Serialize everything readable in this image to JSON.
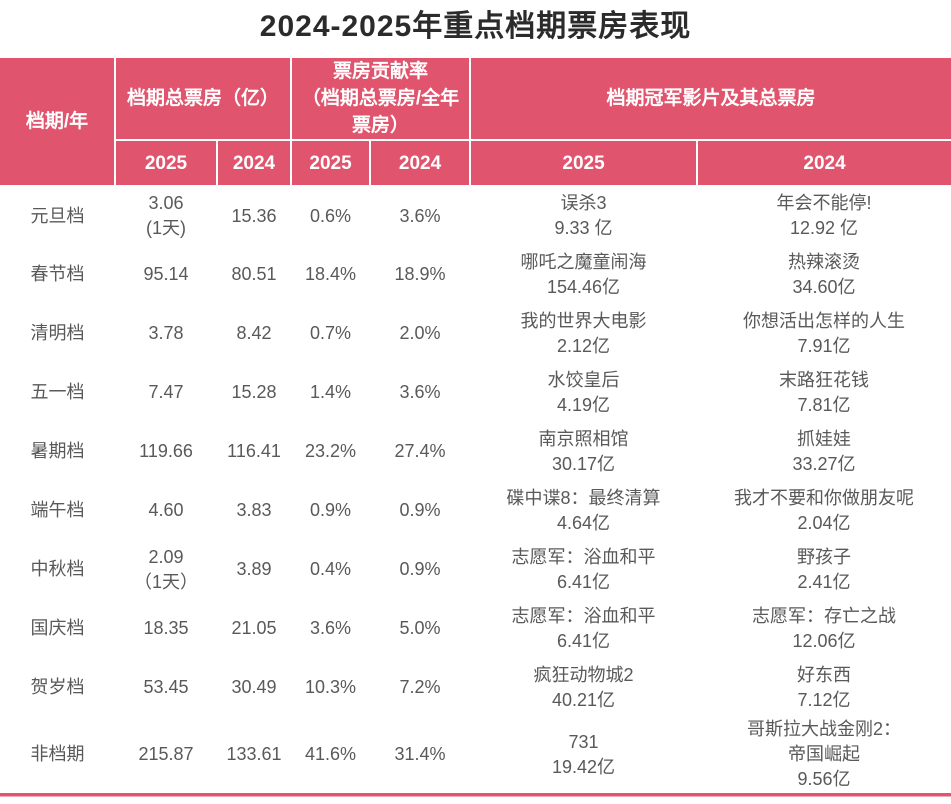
{
  "title": "2024-2025年重点档期票房表现",
  "colors": {
    "header_pink": "#e0546e",
    "body_text": "#595959",
    "title_text": "#2b2b2b",
    "separator": "#ffffff"
  },
  "chart_data": {
    "type": "table",
    "title": "2024-2025年重点档期票房表现",
    "header": {
      "period_year": "档期/年",
      "group_total": "档期总票房（亿）",
      "group_contribution": "票房贡献率\n（档期总票房/全年\n票房）",
      "group_champion": "档期冠军影片及其总票房",
      "years": [
        "2025",
        "2024",
        "2025",
        "2024",
        "2025",
        "2024"
      ]
    },
    "rows": [
      {
        "period": "元旦档",
        "total_2025": "3.06\n(1天)",
        "total_2024": "15.36",
        "share_2025": "0.6%",
        "share_2024": "3.6%",
        "film_2025": "误杀3\n9.33 亿",
        "film_2024": "年会不能停!\n12.92 亿"
      },
      {
        "period": "春节档",
        "total_2025": "95.14",
        "total_2024": "80.51",
        "share_2025": "18.4%",
        "share_2024": "18.9%",
        "film_2025": "哪吒之魔童闹海\n154.46亿",
        "film_2024": "热辣滚烫\n34.60亿"
      },
      {
        "period": "清明档",
        "total_2025": "3.78",
        "total_2024": "8.42",
        "share_2025": "0.7%",
        "share_2024": "2.0%",
        "film_2025": "我的世界大电影\n2.12亿",
        "film_2024": "你想活出怎样的人生\n7.91亿"
      },
      {
        "period": "五一档",
        "total_2025": "7.47",
        "total_2024": "15.28",
        "share_2025": "1.4%",
        "share_2024": "3.6%",
        "film_2025": "水饺皇后\n4.19亿",
        "film_2024": "末路狂花钱\n7.81亿"
      },
      {
        "period": "暑期档",
        "total_2025": "119.66",
        "total_2024": "116.41",
        "share_2025": "23.2%",
        "share_2024": "27.4%",
        "film_2025": "南京照相馆\n30.17亿",
        "film_2024": "抓娃娃\n33.27亿"
      },
      {
        "period": "端午档",
        "total_2025": "4.60",
        "total_2024": "3.83",
        "share_2025": "0.9%",
        "share_2024": "0.9%",
        "film_2025": "碟中谍8：最终清算\n4.64亿",
        "film_2024": "我才不要和你做朋友呢\n2.04亿"
      },
      {
        "period": "中秋档",
        "total_2025": "2.09\n（1天）",
        "total_2024": "3.89",
        "share_2025": "0.4%",
        "share_2024": "0.9%",
        "film_2025": "志愿军：浴血和平\n6.41亿",
        "film_2024": "野孩子\n2.41亿"
      },
      {
        "period": "国庆档",
        "total_2025": "18.35",
        "total_2024": "21.05",
        "share_2025": "3.6%",
        "share_2024": "5.0%",
        "film_2025": "志愿军：浴血和平\n6.41亿",
        "film_2024": "志愿军：存亡之战\n12.06亿"
      },
      {
        "period": "贺岁档",
        "total_2025": "53.45",
        "total_2024": "30.49",
        "share_2025": "10.3%",
        "share_2024": "7.2%",
        "film_2025": "疯狂动物城2\n40.21亿",
        "film_2024": "好东西\n7.12亿"
      },
      {
        "period": "非档期",
        "total_2025": "215.87",
        "total_2024": "133.61",
        "share_2025": "41.6%",
        "share_2024": "31.4%",
        "film_2025": "731\n19.42亿",
        "film_2024": "哥斯拉大战金刚2：\n帝国崛起\n9.56亿"
      }
    ]
  }
}
